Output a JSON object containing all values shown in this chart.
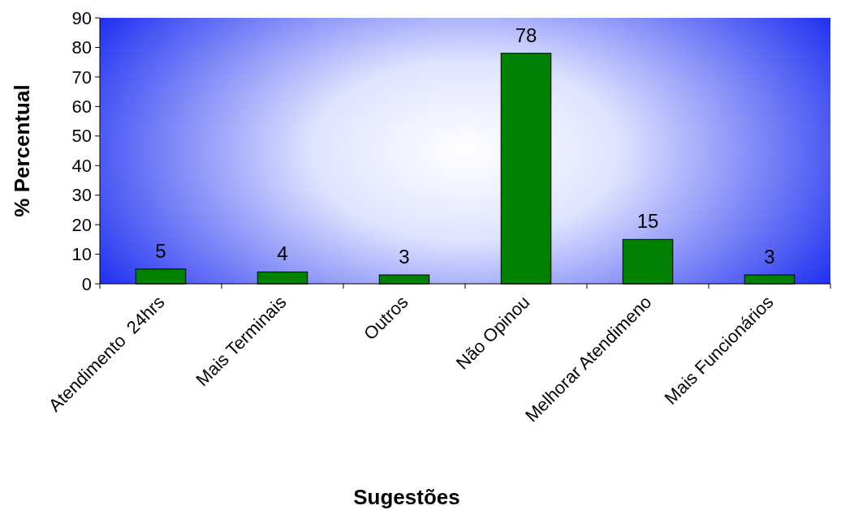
{
  "chart_data": {
    "type": "bar",
    "xlabel": "Sugestões",
    "ylabel": "% Percentual",
    "categories": [
      "Atendimento  24hrs",
      "Mais Terminais",
      "Outros",
      "Não Opinou",
      "Melhorar Atendimeno",
      "Mais Funcionários"
    ],
    "values": [
      5,
      4,
      3,
      78,
      15,
      3
    ],
    "color": "#008000",
    "ylim": [
      0,
      90
    ],
    "yticks": [
      0,
      10,
      20,
      30,
      40,
      50,
      60,
      70,
      80,
      90
    ],
    "grid": false,
    "data_labels": true
  }
}
